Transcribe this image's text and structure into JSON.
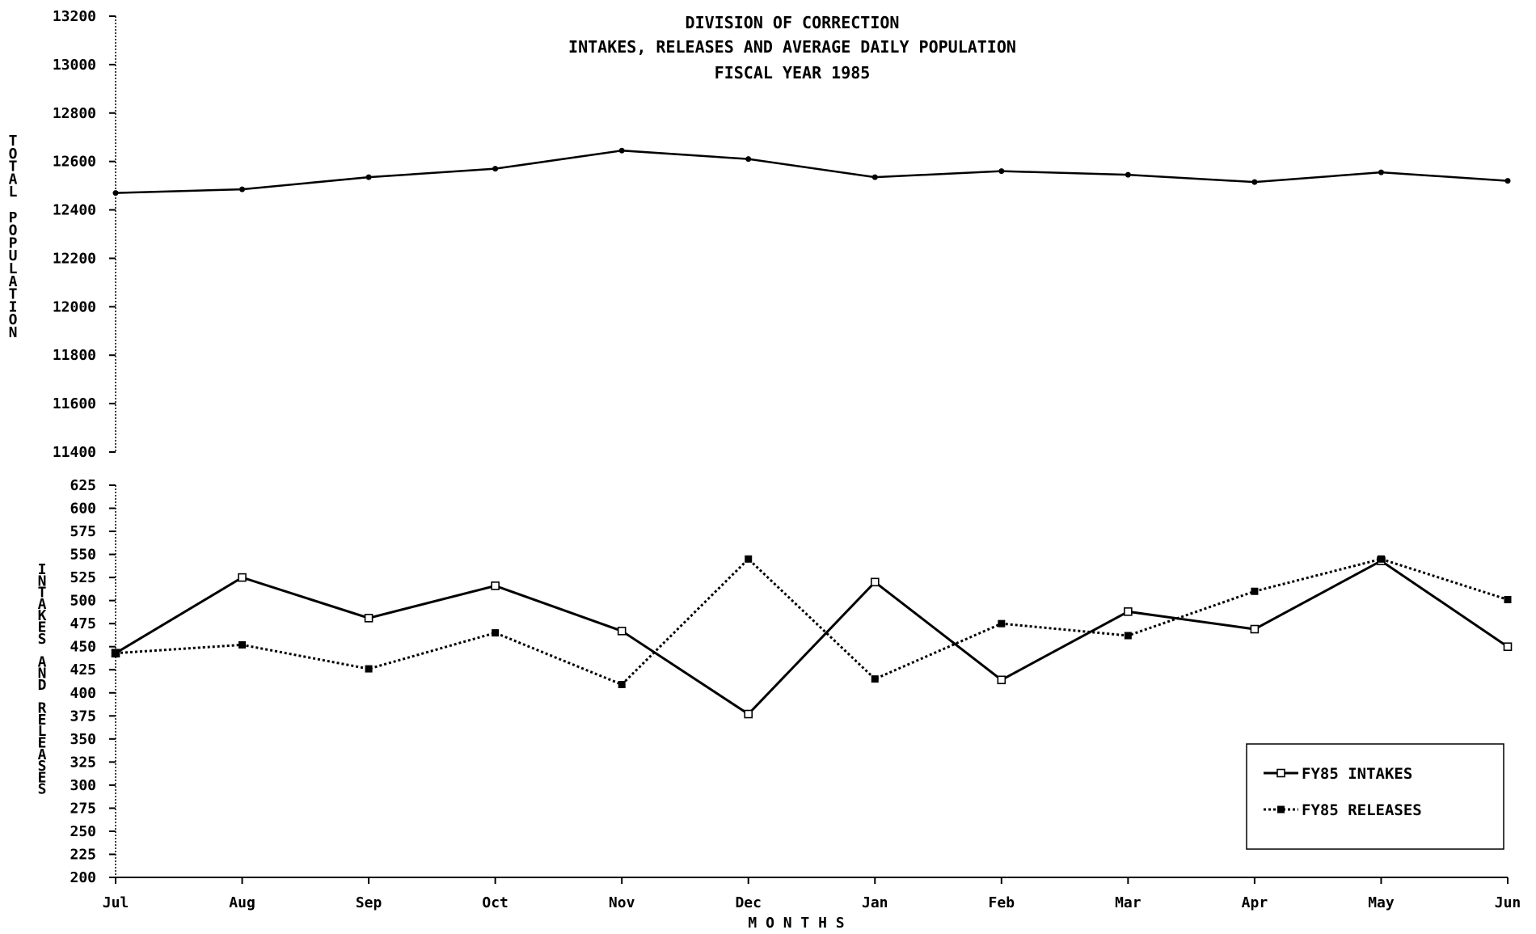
{
  "chart_data": [
    {
      "type": "line",
      "title": [
        "DIVISION OF CORRECTION",
        "INTAKES, RELEASES AND AVERAGE DAILY POPULATION",
        "FISCAL YEAR 1985"
      ],
      "ylabel": "TOTAL POPULATION",
      "ylim": [
        11400,
        13200
      ],
      "yticks": [
        11400,
        11600,
        11800,
        12000,
        12200,
        12400,
        12600,
        12800,
        13000,
        13200
      ],
      "categories": [
        "Jul",
        "Aug",
        "Sep",
        "Oct",
        "Nov",
        "Dec",
        "Jan",
        "Feb",
        "Mar",
        "Apr",
        "May",
        "Jun"
      ],
      "series": [
        {
          "values": [
            12470,
            12485,
            12535,
            12570,
            12645,
            12610,
            12535,
            12560,
            12545,
            12515,
            12555,
            12520
          ]
        }
      ]
    },
    {
      "type": "line",
      "ylabel": "INTAKES AND RELEASES",
      "xlabel": "M O N T H S",
      "ylim": [
        200,
        625
      ],
      "yticks": [
        200,
        225,
        250,
        275,
        300,
        325,
        350,
        375,
        400,
        425,
        450,
        475,
        500,
        525,
        550,
        575,
        600,
        625
      ],
      "categories": [
        "Jul",
        "Aug",
        "Sep",
        "Oct",
        "Nov",
        "Dec",
        "Jan",
        "Feb",
        "Mar",
        "Apr",
        "May",
        "Jun"
      ],
      "legend_position": "bottom-right",
      "series": [
        {
          "name": "FY85 INTAKES",
          "style": "solid",
          "marker": "open-square",
          "values": [
            443,
            525,
            481,
            516,
            467,
            377,
            520,
            414,
            488,
            469,
            543,
            450
          ]
        },
        {
          "name": "FY85 RELEASES",
          "style": "dotted",
          "marker": "filled-square",
          "values": [
            443,
            452,
            426,
            465,
            409,
            545,
            415,
            475,
            462,
            510,
            545,
            501
          ]
        }
      ]
    }
  ]
}
